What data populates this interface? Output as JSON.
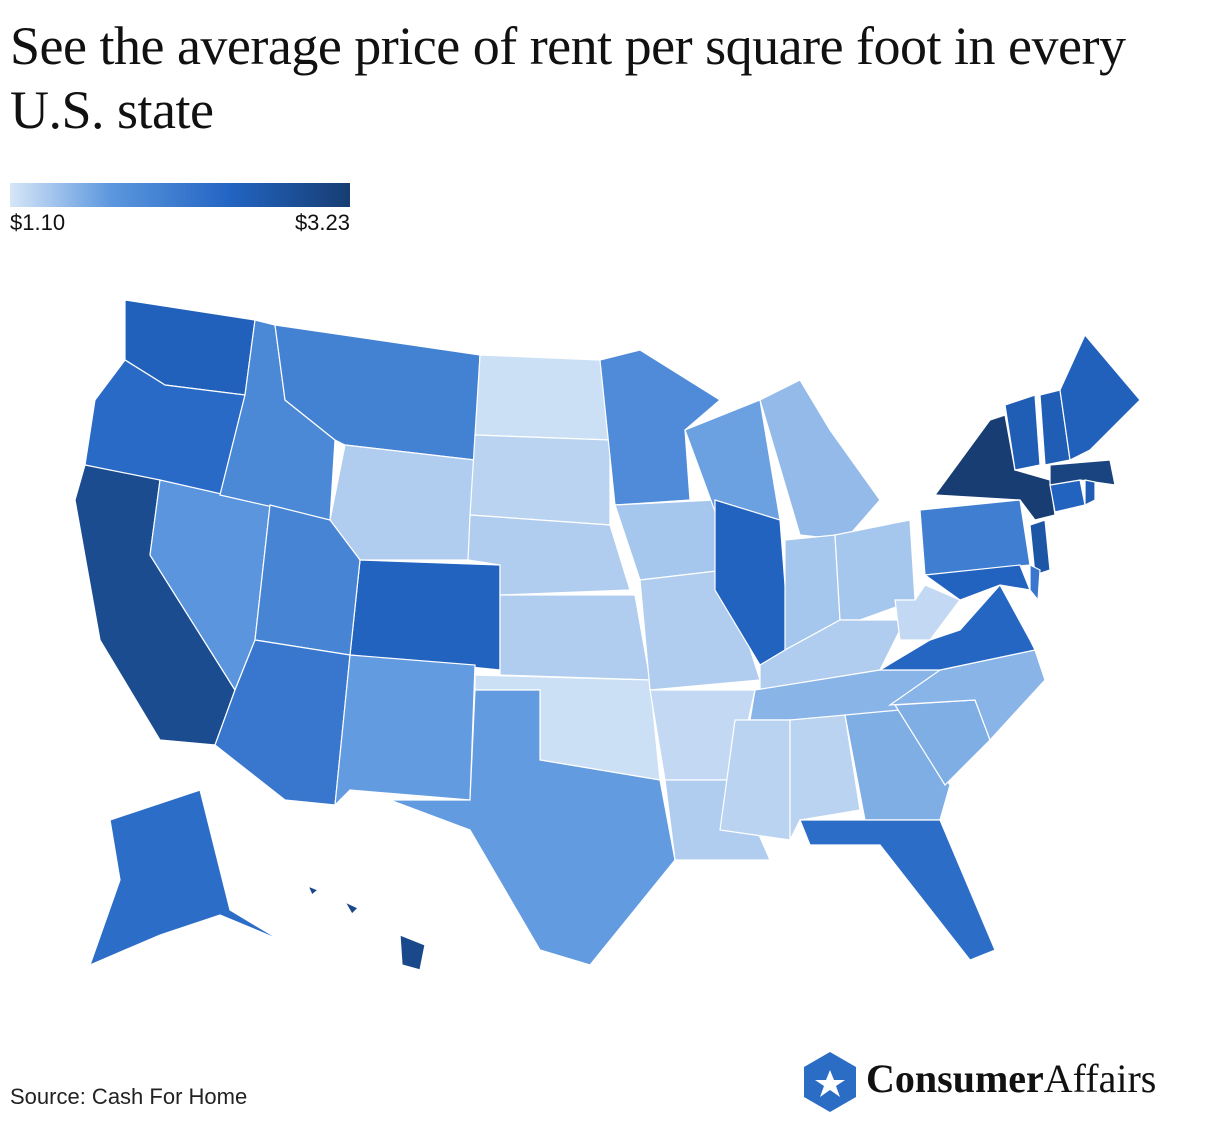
{
  "chart_data": {
    "type": "choropleth",
    "title": "See the average price of rent per square foot in every U.S. state",
    "scale_ticks": [
      {
        "value": 1.1,
        "label": "$1.10"
      },
      {
        "value": 3.23,
        "label": "$3.23"
      }
    ],
    "scale_colors": [
      "#d6e6f7",
      "#5b96de",
      "#2264c2",
      "#173d72"
    ],
    "values": [
      2.55,
      2.4,
      2.95,
      1.75,
      1.95,
      2.05,
      1.3,
      2.5,
      2.0,
      2.2,
      1.7,
      1.15,
      1.25,
      1.3,
      1.3,
      1.15,
      1.7,
      1.9,
      1.35,
      1.3,
      1.2,
      1.3,
      1.65,
      2.5,
      1.45,
      1.35,
      1.35,
      1.3,
      1.5,
      1.25,
      1.25,
      1.55,
      2.35,
      1.55,
      1.5,
      2.45,
      1.2,
      2.1,
      3.23,
      2.75,
      2.5,
      2.2,
      2.5,
      3.1,
      2.6,
      2.6,
      2.55,
      2.6,
      2.35,
      3.0
    ],
    "source": "Source: Cash For Home",
    "brand_bold": "Consumer",
    "brand_regular": "Affairs"
  }
}
